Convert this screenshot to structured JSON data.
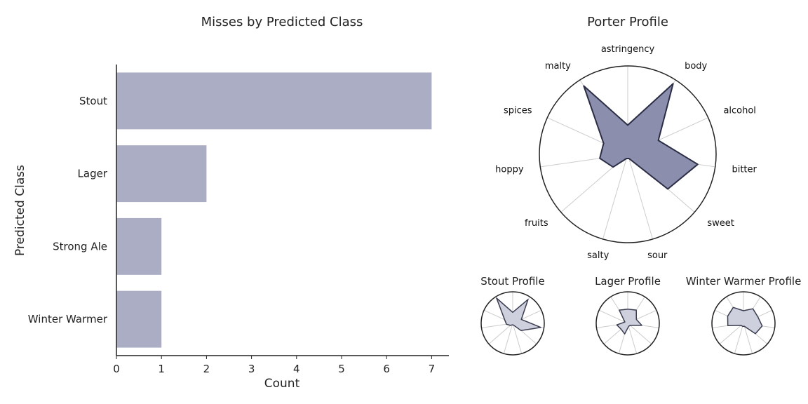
{
  "chart_data": [
    {
      "type": "bar",
      "orientation": "horizontal",
      "title": "Misses by Predicted Class",
      "xlabel": "Count",
      "ylabel": "Predicted Class",
      "categories": [
        "Stout",
        "Lager",
        "Strong Ale",
        "Winter Warmer"
      ],
      "values": [
        7,
        2,
        1,
        1
      ],
      "xlim": [
        0,
        7.35
      ],
      "xticks": [
        "0",
        "1",
        "2",
        "3",
        "4",
        "5",
        "6",
        "7"
      ],
      "color": "#abadc4",
      "grid": false
    },
    {
      "type": "radar",
      "title": "Porter Profile",
      "axes": [
        "astringency",
        "body",
        "alcohol",
        "bitter",
        "sweet",
        "sour",
        "salty",
        "fruits",
        "hoppy",
        "spices",
        "malty"
      ],
      "values": [
        0.33,
        0.95,
        0.38,
        0.8,
        0.6,
        0.05,
        0.05,
        0.22,
        0.32,
        0.3,
        0.92
      ],
      "rmax": 1,
      "fill_color": "#8b8eac",
      "line_color": "#2b2d45"
    },
    {
      "type": "radar",
      "title": "Stout Profile",
      "axes": [
        "astringency",
        "body",
        "alcohol",
        "bitter",
        "sweet",
        "sour",
        "salty",
        "fruits",
        "hoppy",
        "spices",
        "malty"
      ],
      "values": [
        0.35,
        0.9,
        0.3,
        0.9,
        0.35,
        0.05,
        0.05,
        0.1,
        0.2,
        0.28,
        0.95
      ],
      "rmax": 1,
      "fill_color": "#ced0de",
      "line_color": "#3a3c50"
    },
    {
      "type": "radar",
      "title": "Lager Profile",
      "axes": [
        "astringency",
        "body",
        "alcohol",
        "bitter",
        "sweet",
        "sour",
        "salty",
        "fruits",
        "hoppy",
        "spices",
        "malty"
      ],
      "values": [
        0.45,
        0.5,
        0.3,
        0.45,
        0.1,
        0.1,
        0.35,
        0.28,
        0.35,
        0.1,
        0.5
      ],
      "rmax": 1,
      "fill_color": "#ced0de",
      "line_color": "#3a3c50"
    },
    {
      "type": "radar",
      "title": "Winter Warmer Profile",
      "axes": [
        "astringency",
        "body",
        "alcohol",
        "bitter",
        "sweet",
        "sour",
        "salty",
        "fruits",
        "hoppy",
        "spices",
        "malty"
      ],
      "values": [
        0.4,
        0.55,
        0.5,
        0.6,
        0.5,
        0.1,
        0.1,
        0.1,
        0.5,
        0.55,
        0.6
      ],
      "rmax": 1,
      "fill_color": "#ced0de",
      "line_color": "#3a3c50"
    }
  ]
}
